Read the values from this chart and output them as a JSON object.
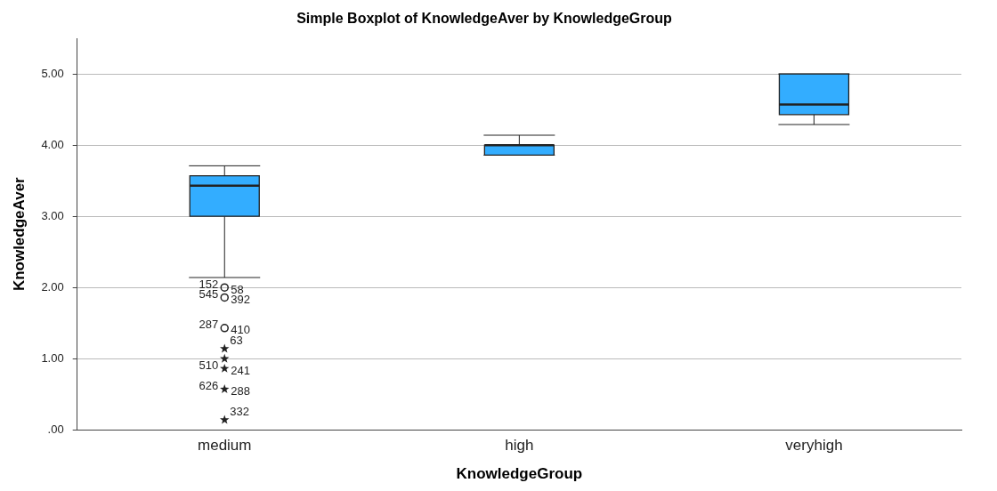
{
  "chart_data": {
    "type": "box",
    "title": "Simple Boxplot of KnowledgeAver by KnowledgeGroup",
    "xlabel": "KnowledgeGroup",
    "ylabel": "KnowledgeAver",
    "categories": [
      "medium",
      "high",
      "veryhigh"
    ],
    "series": [
      {
        "color": "#33adff",
        "boxes": [
          {
            "low": 2.14,
            "q1": 3.0,
            "median": 3.43,
            "q3": 3.57,
            "high": 3.71
          },
          {
            "low": 3.86,
            "q1": 3.86,
            "median": 4.0,
            "q3": 4.0,
            "high": 4.14
          },
          {
            "low": 4.29,
            "q1": 4.43,
            "median": 4.57,
            "q3": 5.0,
            "high": 5.0
          }
        ]
      },
      {
        "type": "scatter",
        "marker": "circle",
        "color": "#222222",
        "x": [
          "medium",
          "medium",
          "medium"
        ],
        "values": [
          2.0,
          1.86,
          1.43
        ]
      },
      {
        "type": "scatter",
        "marker": "star",
        "color": "#222222",
        "x": [
          "medium",
          "medium",
          "medium",
          "medium",
          "medium"
        ],
        "values": [
          1.14,
          1.0,
          0.86,
          0.57,
          0.14
        ]
      }
    ],
    "ylim": [
      0,
      5.5
    ],
    "yticks": [
      {
        "value": 0,
        "label": ".00"
      },
      {
        "value": 1,
        "label": "1.00"
      },
      {
        "value": 2,
        "label": "2.00"
      },
      {
        "value": 3,
        "label": "3.00"
      },
      {
        "value": 4,
        "label": "4.00"
      },
      {
        "value": 5,
        "label": "5.00"
      }
    ],
    "grid": "y",
    "annotations": [
      {
        "text": "152",
        "x": "medium",
        "y": 2.0
      },
      {
        "text": "58",
        "x": "medium",
        "y": 2.0
      },
      {
        "text": "545",
        "x": "medium",
        "y": 1.86
      },
      {
        "text": "392",
        "x": "medium",
        "y": 1.86
      },
      {
        "text": "287",
        "x": "medium",
        "y": 1.43
      },
      {
        "text": "410",
        "x": "medium",
        "y": 1.43
      },
      {
        "text": "63",
        "x": "medium",
        "y": 1.14
      },
      {
        "text": "510",
        "x": "medium",
        "y": 0.86
      },
      {
        "text": "241",
        "x": "medium",
        "y": 0.86
      },
      {
        "text": "626",
        "x": "medium",
        "y": 0.57
      },
      {
        "text": "288",
        "x": "medium",
        "y": 0.57
      },
      {
        "text": "332",
        "x": "medium",
        "y": 0.14
      }
    ]
  }
}
